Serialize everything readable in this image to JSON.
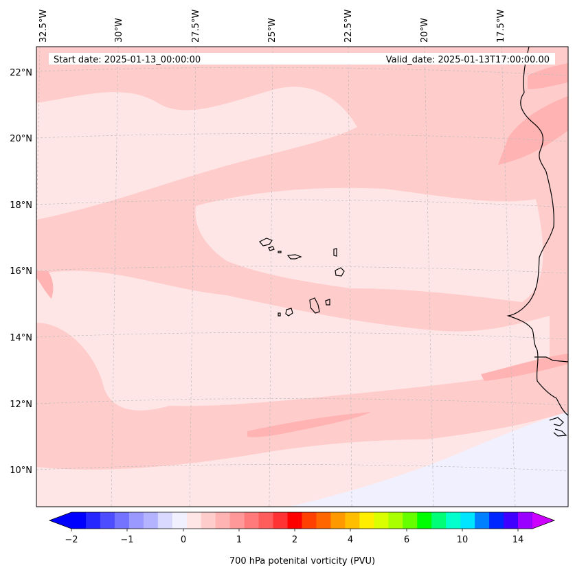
{
  "header": {
    "start_date": "Start date: 2025-01-13_00:00:00",
    "valid_date": "Valid_date: 2025-01-13T17:00:00.00"
  },
  "axes": {
    "lon_labels": [
      "32.5°W",
      "30°W",
      "27.5°W",
      "25°W",
      "22.5°W",
      "20°W",
      "17.5°W"
    ],
    "lat_labels": [
      "22°N",
      "20°N",
      "18°N",
      "16°N",
      "14°N",
      "12°N",
      "10°N"
    ]
  },
  "colorbar": {
    "title": "700 hPa potenital vorticity (PVU)",
    "tick_labels": [
      "−2",
      "−1",
      "0",
      "1",
      "2",
      "4",
      "6",
      "10",
      "14"
    ],
    "colors": [
      "#0000ff",
      "#2626ff",
      "#4d4dff",
      "#7373ff",
      "#9999ff",
      "#b3b3ff",
      "#d9d9ff",
      "#f0f0ff",
      "#ffe6e6",
      "#ffcccc",
      "#ffb3b3",
      "#ff9999",
      "#ff7a7a",
      "#ff5c5c",
      "#ff3333",
      "#ff0000",
      "#ff4000",
      "#ff6600",
      "#ff9900",
      "#ffbf00",
      "#ffee00",
      "#d9ff00",
      "#aaff00",
      "#66ff00",
      "#00ff00",
      "#00ff77",
      "#00ffcc",
      "#00e5ff",
      "#0080ff",
      "#0026ff",
      "#4000ff",
      "#9900ff"
    ],
    "under_color": "#0000ff",
    "over_color": "#cc00ff"
  },
  "field_colors": {
    "background": "#ffcccc",
    "lighter": "#ffe6e6",
    "darker": "#ffb3b3",
    "negative": "#f0f0ff"
  }
}
